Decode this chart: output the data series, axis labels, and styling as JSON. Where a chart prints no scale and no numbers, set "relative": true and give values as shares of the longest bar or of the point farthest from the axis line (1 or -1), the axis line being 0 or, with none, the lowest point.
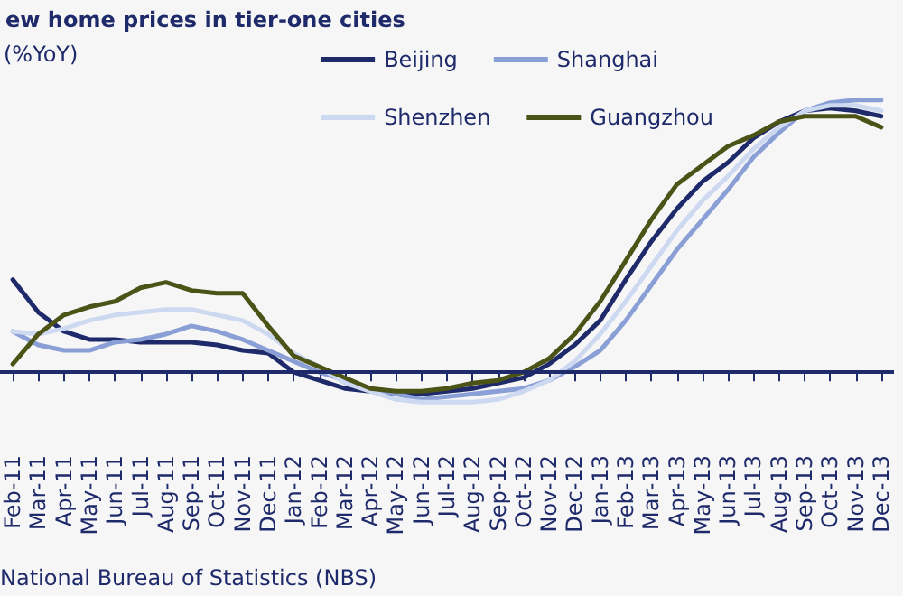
{
  "chart_data": {
    "type": "line",
    "title": "ew home prices in tier-one cities",
    "ylabel": "(%YoY)",
    "annotations": [
      "National Bureau of Statistics (NBS)"
    ],
    "relative": true,
    "ref_lines": [
      {
        "axis": "y",
        "value": 0,
        "color": "#1f2a6b"
      }
    ],
    "legend": "top right",
    "grid": false,
    "marker": "none",
    "line_style": "solid",
    "categories": [
      "Feb-11",
      "Mar-11",
      "Apr-11",
      "May-11",
      "Jun-11",
      "Jul-11",
      "Aug-11",
      "Sep-11",
      "Oct-11",
      "Nov-11",
      "Dec-11",
      "Jan-12",
      "Feb-12",
      "Mar-12",
      "Apr-12",
      "May-12",
      "Jun-12",
      "Jul-12",
      "Aug-12",
      "Sep-12",
      "Oct-12",
      "Nov-12",
      "Dec-12",
      "Jan-13",
      "Feb-13",
      "Mar-13",
      "Apr-13",
      "May-13",
      "Jun-13",
      "Jul-13",
      "Aug-13",
      "Sep-13",
      "Oct-13",
      "Nov-13",
      "Dec-13"
    ],
    "series": [
      {
        "name": "Beijing",
        "color": "#1f2a6b",
        "values": [
          0.34,
          0.22,
          0.15,
          0.12,
          0.12,
          0.11,
          0.11,
          0.11,
          0.1,
          0.08,
          0.07,
          0,
          -0.03,
          -0.06,
          -0.07,
          -0.08,
          -0.08,
          -0.07,
          -0.06,
          -0.04,
          -0.02,
          0.03,
          0.1,
          0.19,
          0.34,
          0.48,
          0.6,
          0.7,
          0.77,
          0.86,
          0.92,
          0.96,
          0.97,
          0.96,
          0.94
        ]
      },
      {
        "name": "Shanghai",
        "color": "#8a9fd6",
        "values": [
          0.15,
          0.1,
          0.08,
          0.08,
          0.11,
          0.12,
          0.14,
          0.17,
          0.15,
          0.12,
          0.08,
          0.04,
          0,
          -0.03,
          -0.06,
          -0.08,
          -0.1,
          -0.09,
          -0.08,
          -0.07,
          -0.06,
          -0.03,
          0.02,
          0.08,
          0.19,
          0.32,
          0.45,
          0.56,
          0.67,
          0.79,
          0.88,
          0.96,
          0.99,
          1,
          1
        ]
      },
      {
        "name": "Shenzhen",
        "color": "#cdd9f0",
        "values": [
          0.15,
          0.14,
          0.16,
          0.19,
          0.21,
          0.22,
          0.23,
          0.23,
          0.21,
          0.19,
          0.14,
          0.07,
          0.02,
          -0.04,
          -0.07,
          -0.1,
          -0.11,
          -0.11,
          -0.11,
          -0.1,
          -0.07,
          -0.03,
          0.04,
          0.14,
          0.26,
          0.39,
          0.52,
          0.63,
          0.72,
          0.82,
          0.9,
          0.96,
          0.98,
          0.98,
          0.96
        ]
      },
      {
        "name": "Guangzhou",
        "color": "#4b5317",
        "values": [
          0.03,
          0.14,
          0.21,
          0.24,
          0.26,
          0.31,
          0.33,
          0.3,
          0.29,
          0.29,
          0.17,
          0.06,
          0.02,
          -0.02,
          -0.06,
          -0.07,
          -0.07,
          -0.06,
          -0.04,
          -0.03,
          0,
          0.05,
          0.14,
          0.26,
          0.41,
          0.56,
          0.69,
          0.76,
          0.83,
          0.87,
          0.92,
          0.94,
          0.94,
          0.94,
          0.9
        ]
      }
    ]
  }
}
